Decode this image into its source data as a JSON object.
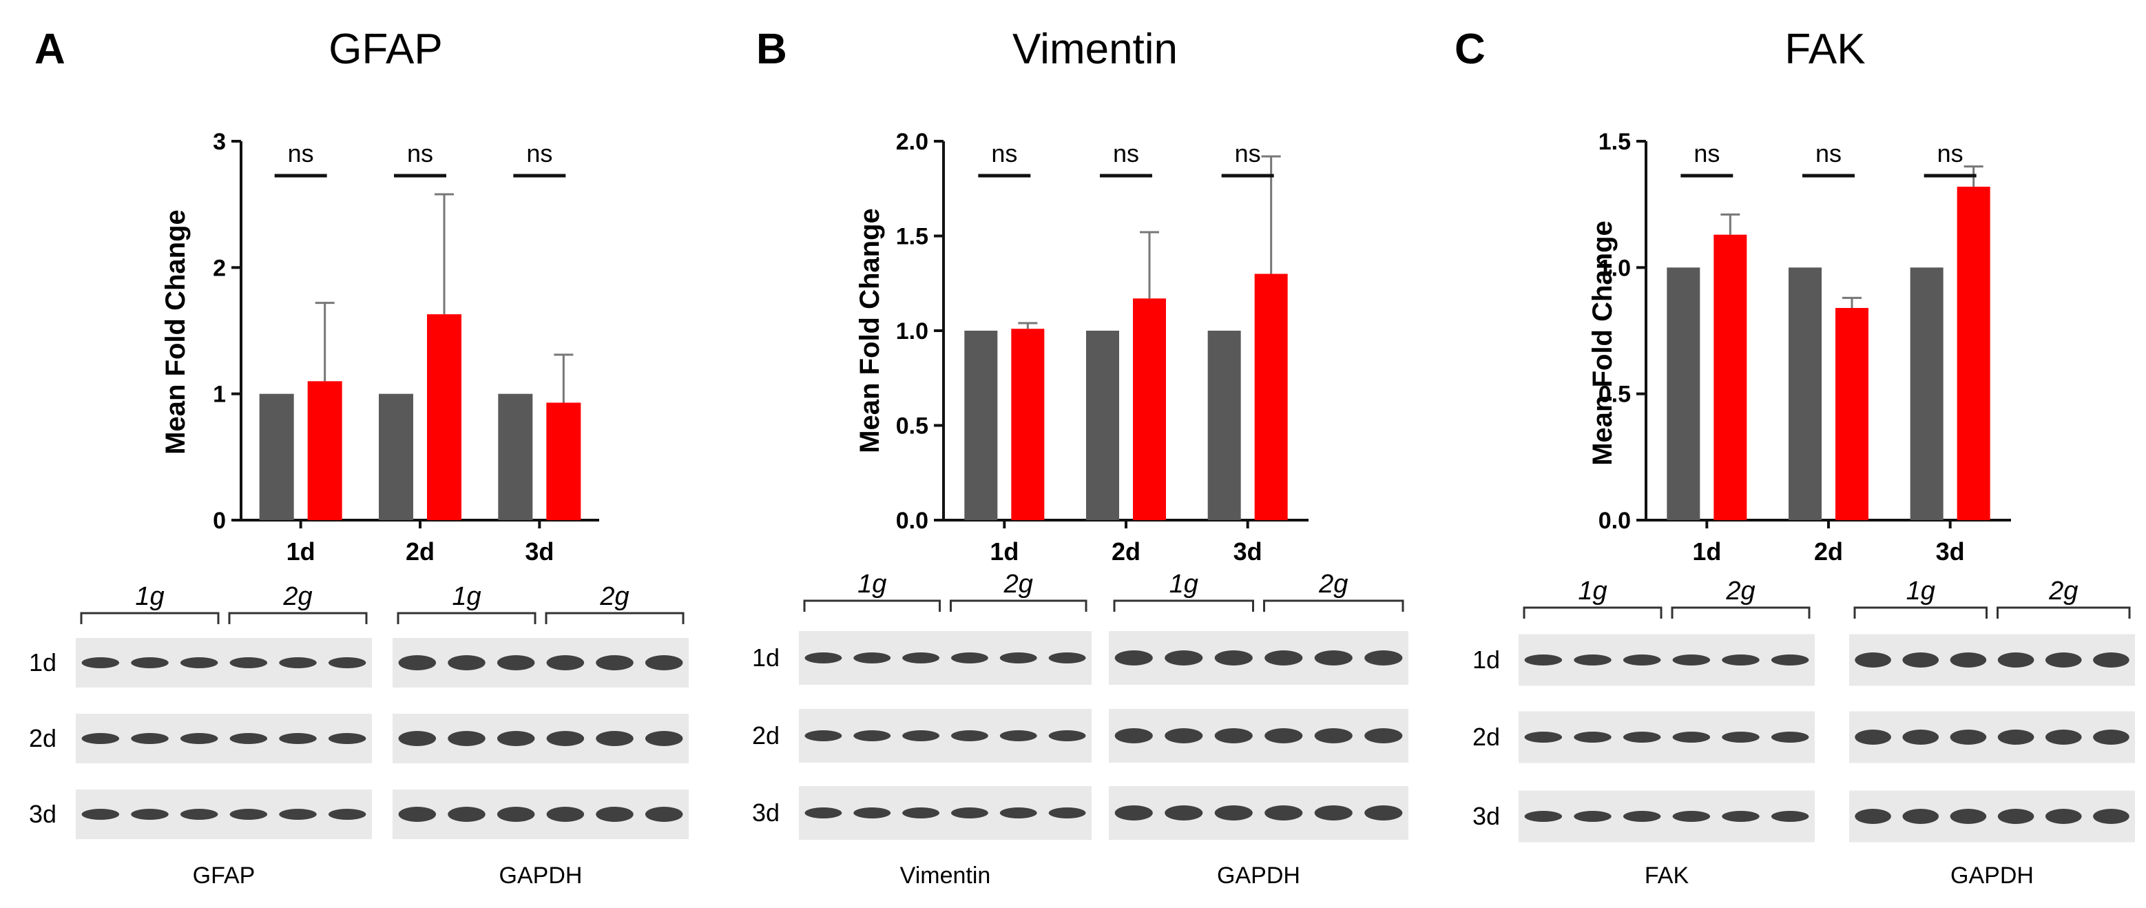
{
  "colors": {
    "control": "#595959",
    "treated": "#ff0000",
    "band": "#111111",
    "blot_bg": "#e9e9e9"
  },
  "chart_data": [
    {
      "type": "bar",
      "panel_label": "A",
      "title": "GFAP",
      "xlabel": "",
      "ylabel": "Mean Fold  Change",
      "categories": [
        "1d",
        "2d",
        "3d"
      ],
      "ylim": [
        0,
        3
      ],
      "yticks": [
        0,
        1,
        2,
        3
      ],
      "ytick_labels": [
        "0",
        "1",
        "2",
        "3"
      ],
      "series": [
        {
          "color": "#595959",
          "values": [
            1.0,
            1.0,
            1.0
          ],
          "errors": [
            0,
            0,
            0
          ]
        },
        {
          "color": "#ff0000",
          "values": [
            1.1,
            1.63,
            0.93
          ],
          "errors": [
            0.62,
            0.95,
            0.38
          ]
        }
      ],
      "significance": [
        "ns",
        "ns",
        "ns"
      ],
      "grid": false,
      "blots": {
        "groups": [
          "1g",
          "2g"
        ],
        "rows": [
          "1d",
          "2d",
          "3d"
        ],
        "captions": [
          "GFAP",
          "GAPDH"
        ]
      }
    },
    {
      "type": "bar",
      "panel_label": "B",
      "title": "Vimentin",
      "xlabel": "",
      "ylabel": "Mean  Fold  Change",
      "categories": [
        "1d",
        "2d",
        "3d"
      ],
      "ylim": [
        0,
        2.0
      ],
      "yticks": [
        0,
        0.5,
        1.0,
        1.5,
        2.0
      ],
      "ytick_labels": [
        "0.0",
        "0.5",
        "1.0",
        "1.5",
        "2.0"
      ],
      "series": [
        {
          "color": "#595959",
          "values": [
            1.0,
            1.0,
            1.0
          ],
          "errors": [
            0,
            0,
            0
          ]
        },
        {
          "color": "#ff0000",
          "values": [
            1.01,
            1.17,
            1.3
          ],
          "errors": [
            0.03,
            0.35,
            0.62
          ]
        }
      ],
      "significance": [
        "ns",
        "ns",
        "ns"
      ],
      "grid": false,
      "blots": {
        "groups": [
          "1g",
          "2g"
        ],
        "rows": [
          "1d",
          "2d",
          "3d"
        ],
        "captions": [
          "Vimentin",
          "GAPDH"
        ]
      }
    },
    {
      "type": "bar",
      "panel_label": "C",
      "title": "FAK",
      "xlabel": "",
      "ylabel": "Mean Fold Change",
      "categories": [
        "1d",
        "2d",
        "3d"
      ],
      "ylim": [
        0,
        1.5
      ],
      "yticks": [
        0,
        0.5,
        1.0,
        1.5
      ],
      "ytick_labels": [
        "0.0",
        "0.5",
        "1.0",
        "1.5"
      ],
      "series": [
        {
          "color": "#595959",
          "values": [
            1.0,
            1.0,
            1.0
          ],
          "errors": [
            0,
            0,
            0
          ]
        },
        {
          "color": "#ff0000",
          "values": [
            1.13,
            0.84,
            1.32
          ],
          "errors": [
            0.08,
            0.04,
            0.08
          ]
        }
      ],
      "significance": [
        "ns",
        "ns",
        "ns"
      ],
      "grid": false,
      "blots": {
        "groups": [
          "1g",
          "2g"
        ],
        "rows": [
          "1d",
          "2d",
          "3d"
        ],
        "captions": [
          "FAK",
          "GAPDH"
        ]
      }
    }
  ]
}
